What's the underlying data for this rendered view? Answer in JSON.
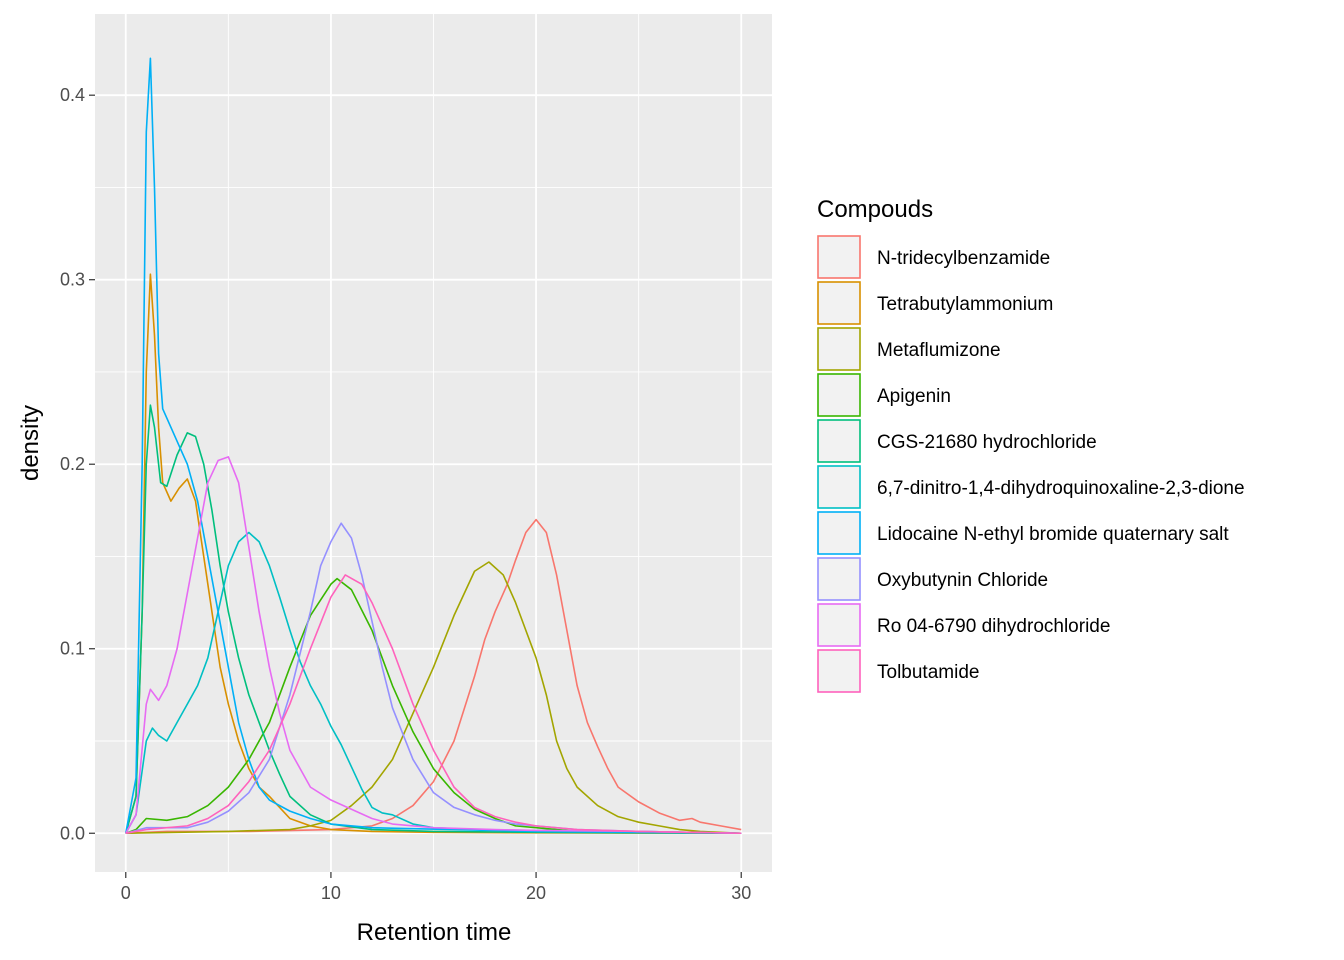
{
  "chart_data": {
    "type": "line",
    "xlabel": "Retention time",
    "ylabel": "density",
    "xlim": [
      -1.5,
      31.5
    ],
    "ylim": [
      -0.021,
      0.444
    ],
    "x_ticks": [
      0,
      10,
      20,
      30
    ],
    "y_ticks": [
      0.0,
      0.1,
      0.2,
      0.3,
      0.4
    ],
    "x_tick_labels": [
      "0",
      "10",
      "20",
      "30"
    ],
    "y_tick_labels": [
      "0.0",
      "0.1",
      "0.2",
      "0.3",
      "0.4"
    ],
    "grid": true,
    "legend": {
      "title": "Compouds",
      "position": "right"
    },
    "series": [
      {
        "name": "N-tridecylbenzamide",
        "color": "#F8766D",
        "points": [
          [
            0,
            0
          ],
          [
            2,
            0.001
          ],
          [
            6,
            0.001
          ],
          [
            10,
            0.002
          ],
          [
            12,
            0.004
          ],
          [
            13,
            0.008
          ],
          [
            14,
            0.015
          ],
          [
            15,
            0.028
          ],
          [
            16,
            0.05
          ],
          [
            17,
            0.085
          ],
          [
            17.5,
            0.105
          ],
          [
            18,
            0.12
          ],
          [
            18.6,
            0.135
          ],
          [
            19,
            0.148
          ],
          [
            19.5,
            0.163
          ],
          [
            20,
            0.17
          ],
          [
            20.5,
            0.163
          ],
          [
            21,
            0.14
          ],
          [
            21.5,
            0.11
          ],
          [
            22,
            0.08
          ],
          [
            22.5,
            0.06
          ],
          [
            23,
            0.047
          ],
          [
            23.5,
            0.035
          ],
          [
            24,
            0.025
          ],
          [
            25,
            0.017
          ],
          [
            26,
            0.011
          ],
          [
            27,
            0.007
          ],
          [
            27.6,
            0.008
          ],
          [
            28,
            0.006
          ],
          [
            29,
            0.004
          ],
          [
            30,
            0.002
          ]
        ]
      },
      {
        "name": "Tetrabutylammonium",
        "color": "#D89000",
        "points": [
          [
            0,
            0
          ],
          [
            0.5,
            0.02
          ],
          [
            0.8,
            0.12
          ],
          [
            1,
            0.25
          ],
          [
            1.2,
            0.303
          ],
          [
            1.4,
            0.27
          ],
          [
            1.6,
            0.22
          ],
          [
            1.8,
            0.19
          ],
          [
            2.2,
            0.18
          ],
          [
            2.6,
            0.187
          ],
          [
            3,
            0.192
          ],
          [
            3.4,
            0.18
          ],
          [
            3.8,
            0.15
          ],
          [
            4.2,
            0.12
          ],
          [
            4.6,
            0.09
          ],
          [
            5,
            0.07
          ],
          [
            5.5,
            0.05
          ],
          [
            6,
            0.035
          ],
          [
            6.5,
            0.025
          ],
          [
            7,
            0.02
          ],
          [
            7.5,
            0.014
          ],
          [
            8,
            0.008
          ],
          [
            9,
            0.004
          ],
          [
            10,
            0.002
          ],
          [
            12,
            0.001
          ],
          [
            15,
            0.0005
          ],
          [
            20,
            0.0002
          ],
          [
            30,
            0
          ]
        ]
      },
      {
        "name": "Metaflumizone",
        "color": "#A3A500",
        "points": [
          [
            0,
            0
          ],
          [
            5,
            0.001
          ],
          [
            8,
            0.002
          ],
          [
            9,
            0.004
          ],
          [
            10,
            0.007
          ],
          [
            11,
            0.015
          ],
          [
            12,
            0.025
          ],
          [
            13,
            0.04
          ],
          [
            14,
            0.065
          ],
          [
            15,
            0.09
          ],
          [
            16,
            0.118
          ],
          [
            17,
            0.142
          ],
          [
            17.7,
            0.147
          ],
          [
            18.4,
            0.14
          ],
          [
            19,
            0.125
          ],
          [
            20,
            0.095
          ],
          [
            20.5,
            0.075
          ],
          [
            21,
            0.05
          ],
          [
            21.5,
            0.035
          ],
          [
            22,
            0.025
          ],
          [
            23,
            0.015
          ],
          [
            24,
            0.009
          ],
          [
            25,
            0.006
          ],
          [
            26,
            0.004
          ],
          [
            27,
            0.002
          ],
          [
            28,
            0.001
          ],
          [
            30,
            0
          ]
        ]
      },
      {
        "name": "Apigenin",
        "color": "#39B600",
        "points": [
          [
            0,
            0
          ],
          [
            0.5,
            0.002
          ],
          [
            1,
            0.008
          ],
          [
            2,
            0.007
          ],
          [
            3,
            0.009
          ],
          [
            4,
            0.015
          ],
          [
            5,
            0.025
          ],
          [
            6,
            0.04
          ],
          [
            7,
            0.06
          ],
          [
            8,
            0.09
          ],
          [
            9,
            0.118
          ],
          [
            10,
            0.135
          ],
          [
            10.3,
            0.138
          ],
          [
            11,
            0.132
          ],
          [
            12,
            0.11
          ],
          [
            13,
            0.08
          ],
          [
            14,
            0.055
          ],
          [
            15,
            0.035
          ],
          [
            16,
            0.022
          ],
          [
            17,
            0.013
          ],
          [
            18,
            0.008
          ],
          [
            19,
            0.004
          ],
          [
            20,
            0.003
          ],
          [
            22,
            0.001
          ],
          [
            25,
            0.0005
          ],
          [
            30,
            0
          ]
        ]
      },
      {
        "name": "CGS-21680 hydrochloride",
        "color": "#00BF7D",
        "points": [
          [
            0,
            0
          ],
          [
            0.5,
            0.02
          ],
          [
            0.8,
            0.12
          ],
          [
            1,
            0.2
          ],
          [
            1.2,
            0.232
          ],
          [
            1.4,
            0.22
          ],
          [
            1.7,
            0.19
          ],
          [
            2,
            0.188
          ],
          [
            2.5,
            0.205
          ],
          [
            3,
            0.217
          ],
          [
            3.4,
            0.215
          ],
          [
            3.8,
            0.2
          ],
          [
            4.2,
            0.175
          ],
          [
            4.6,
            0.145
          ],
          [
            5,
            0.12
          ],
          [
            5.5,
            0.095
          ],
          [
            6,
            0.075
          ],
          [
            6.5,
            0.06
          ],
          [
            7,
            0.045
          ],
          [
            7.5,
            0.032
          ],
          [
            8,
            0.02
          ],
          [
            9,
            0.01
          ],
          [
            10,
            0.005
          ],
          [
            12,
            0.002
          ],
          [
            15,
            0.001
          ],
          [
            20,
            0.0005
          ],
          [
            30,
            0
          ]
        ]
      },
      {
        "name": "6,7-dinitro-1,4-dihydroquinoxaline-2,3-dione",
        "color": "#00BFC4",
        "points": [
          [
            0,
            0
          ],
          [
            0.5,
            0.01
          ],
          [
            1,
            0.05
          ],
          [
            1.3,
            0.057
          ],
          [
            1.6,
            0.053
          ],
          [
            2,
            0.05
          ],
          [
            2.5,
            0.06
          ],
          [
            3,
            0.07
          ],
          [
            3.5,
            0.08
          ],
          [
            4,
            0.095
          ],
          [
            4.5,
            0.12
          ],
          [
            5,
            0.145
          ],
          [
            5.5,
            0.158
          ],
          [
            6,
            0.163
          ],
          [
            6.5,
            0.158
          ],
          [
            7,
            0.145
          ],
          [
            7.5,
            0.128
          ],
          [
            8,
            0.11
          ],
          [
            8.5,
            0.093
          ],
          [
            9,
            0.08
          ],
          [
            9.5,
            0.07
          ],
          [
            10,
            0.058
          ],
          [
            10.5,
            0.048
          ],
          [
            11,
            0.036
          ],
          [
            11.5,
            0.024
          ],
          [
            12,
            0.014
          ],
          [
            12.5,
            0.011
          ],
          [
            13,
            0.01
          ],
          [
            14,
            0.005
          ],
          [
            15,
            0.003
          ],
          [
            17,
            0.002
          ],
          [
            20,
            0.0015
          ],
          [
            25,
            0.001
          ],
          [
            30,
            0
          ]
        ]
      },
      {
        "name": "Lidocaine N-ethyl bromide quaternary salt",
        "color": "#00B0F6",
        "points": [
          [
            0,
            0
          ],
          [
            0.5,
            0.03
          ],
          [
            0.8,
            0.2
          ],
          [
            1,
            0.38
          ],
          [
            1.2,
            0.42
          ],
          [
            1.4,
            0.35
          ],
          [
            1.6,
            0.26
          ],
          [
            1.8,
            0.23
          ],
          [
            2.2,
            0.22
          ],
          [
            2.6,
            0.21
          ],
          [
            3,
            0.2
          ],
          [
            3.5,
            0.18
          ],
          [
            4,
            0.15
          ],
          [
            4.5,
            0.12
          ],
          [
            5,
            0.09
          ],
          [
            5.5,
            0.06
          ],
          [
            6,
            0.04
          ],
          [
            6.5,
            0.025
          ],
          [
            7,
            0.018
          ],
          [
            8,
            0.012
          ],
          [
            9,
            0.008
          ],
          [
            10,
            0.005
          ],
          [
            12,
            0.003
          ],
          [
            14,
            0.0025
          ],
          [
            16,
            0.002
          ],
          [
            20,
            0.001
          ],
          [
            30,
            0
          ]
        ]
      },
      {
        "name": "Oxybutynin Chloride",
        "color": "#9590FF",
        "points": [
          [
            0,
            0
          ],
          [
            1,
            0.003
          ],
          [
            3,
            0.003
          ],
          [
            4,
            0.006
          ],
          [
            5,
            0.012
          ],
          [
            6,
            0.022
          ],
          [
            7,
            0.04
          ],
          [
            8,
            0.075
          ],
          [
            9,
            0.12
          ],
          [
            9.5,
            0.145
          ],
          [
            10,
            0.158
          ],
          [
            10.5,
            0.168
          ],
          [
            11,
            0.16
          ],
          [
            11.5,
            0.14
          ],
          [
            12,
            0.115
          ],
          [
            12.5,
            0.09
          ],
          [
            13,
            0.068
          ],
          [
            14,
            0.04
          ],
          [
            15,
            0.022
          ],
          [
            16,
            0.014
          ],
          [
            17,
            0.01
          ],
          [
            18,
            0.007
          ],
          [
            19,
            0.005
          ],
          [
            20,
            0.004
          ],
          [
            22,
            0.002
          ],
          [
            25,
            0.001
          ],
          [
            30,
            0
          ]
        ]
      },
      {
        "name": "Ro 04-6790 dihydrochloride",
        "color": "#E76BF3",
        "points": [
          [
            0,
            0
          ],
          [
            0.5,
            0.01
          ],
          [
            1,
            0.07
          ],
          [
            1.2,
            0.078
          ],
          [
            1.6,
            0.072
          ],
          [
            2,
            0.08
          ],
          [
            2.5,
            0.1
          ],
          [
            3,
            0.13
          ],
          [
            3.5,
            0.16
          ],
          [
            4,
            0.19
          ],
          [
            4.5,
            0.202
          ],
          [
            5,
            0.204
          ],
          [
            5.5,
            0.19
          ],
          [
            6,
            0.155
          ],
          [
            6.5,
            0.12
          ],
          [
            7,
            0.09
          ],
          [
            7.5,
            0.065
          ],
          [
            8,
            0.045
          ],
          [
            9,
            0.025
          ],
          [
            10,
            0.018
          ],
          [
            11,
            0.013
          ],
          [
            12,
            0.008
          ],
          [
            13,
            0.005
          ],
          [
            15,
            0.003
          ],
          [
            18,
            0.002
          ],
          [
            20,
            0.0015
          ],
          [
            25,
            0.001
          ],
          [
            30,
            0
          ]
        ]
      },
      {
        "name": "Tolbutamide",
        "color": "#FF62BC",
        "points": [
          [
            0,
            0
          ],
          [
            1,
            0.002
          ],
          [
            3,
            0.004
          ],
          [
            4,
            0.008
          ],
          [
            5,
            0.015
          ],
          [
            6,
            0.028
          ],
          [
            7,
            0.045
          ],
          [
            8,
            0.07
          ],
          [
            9,
            0.1
          ],
          [
            10,
            0.128
          ],
          [
            10.7,
            0.14
          ],
          [
            11.5,
            0.135
          ],
          [
            12,
            0.125
          ],
          [
            13,
            0.1
          ],
          [
            14,
            0.07
          ],
          [
            15,
            0.045
          ],
          [
            16,
            0.025
          ],
          [
            17,
            0.014
          ],
          [
            18,
            0.009
          ],
          [
            19,
            0.006
          ],
          [
            20,
            0.004
          ],
          [
            22,
            0.002
          ],
          [
            25,
            0.001
          ],
          [
            30,
            0
          ]
        ]
      }
    ]
  }
}
